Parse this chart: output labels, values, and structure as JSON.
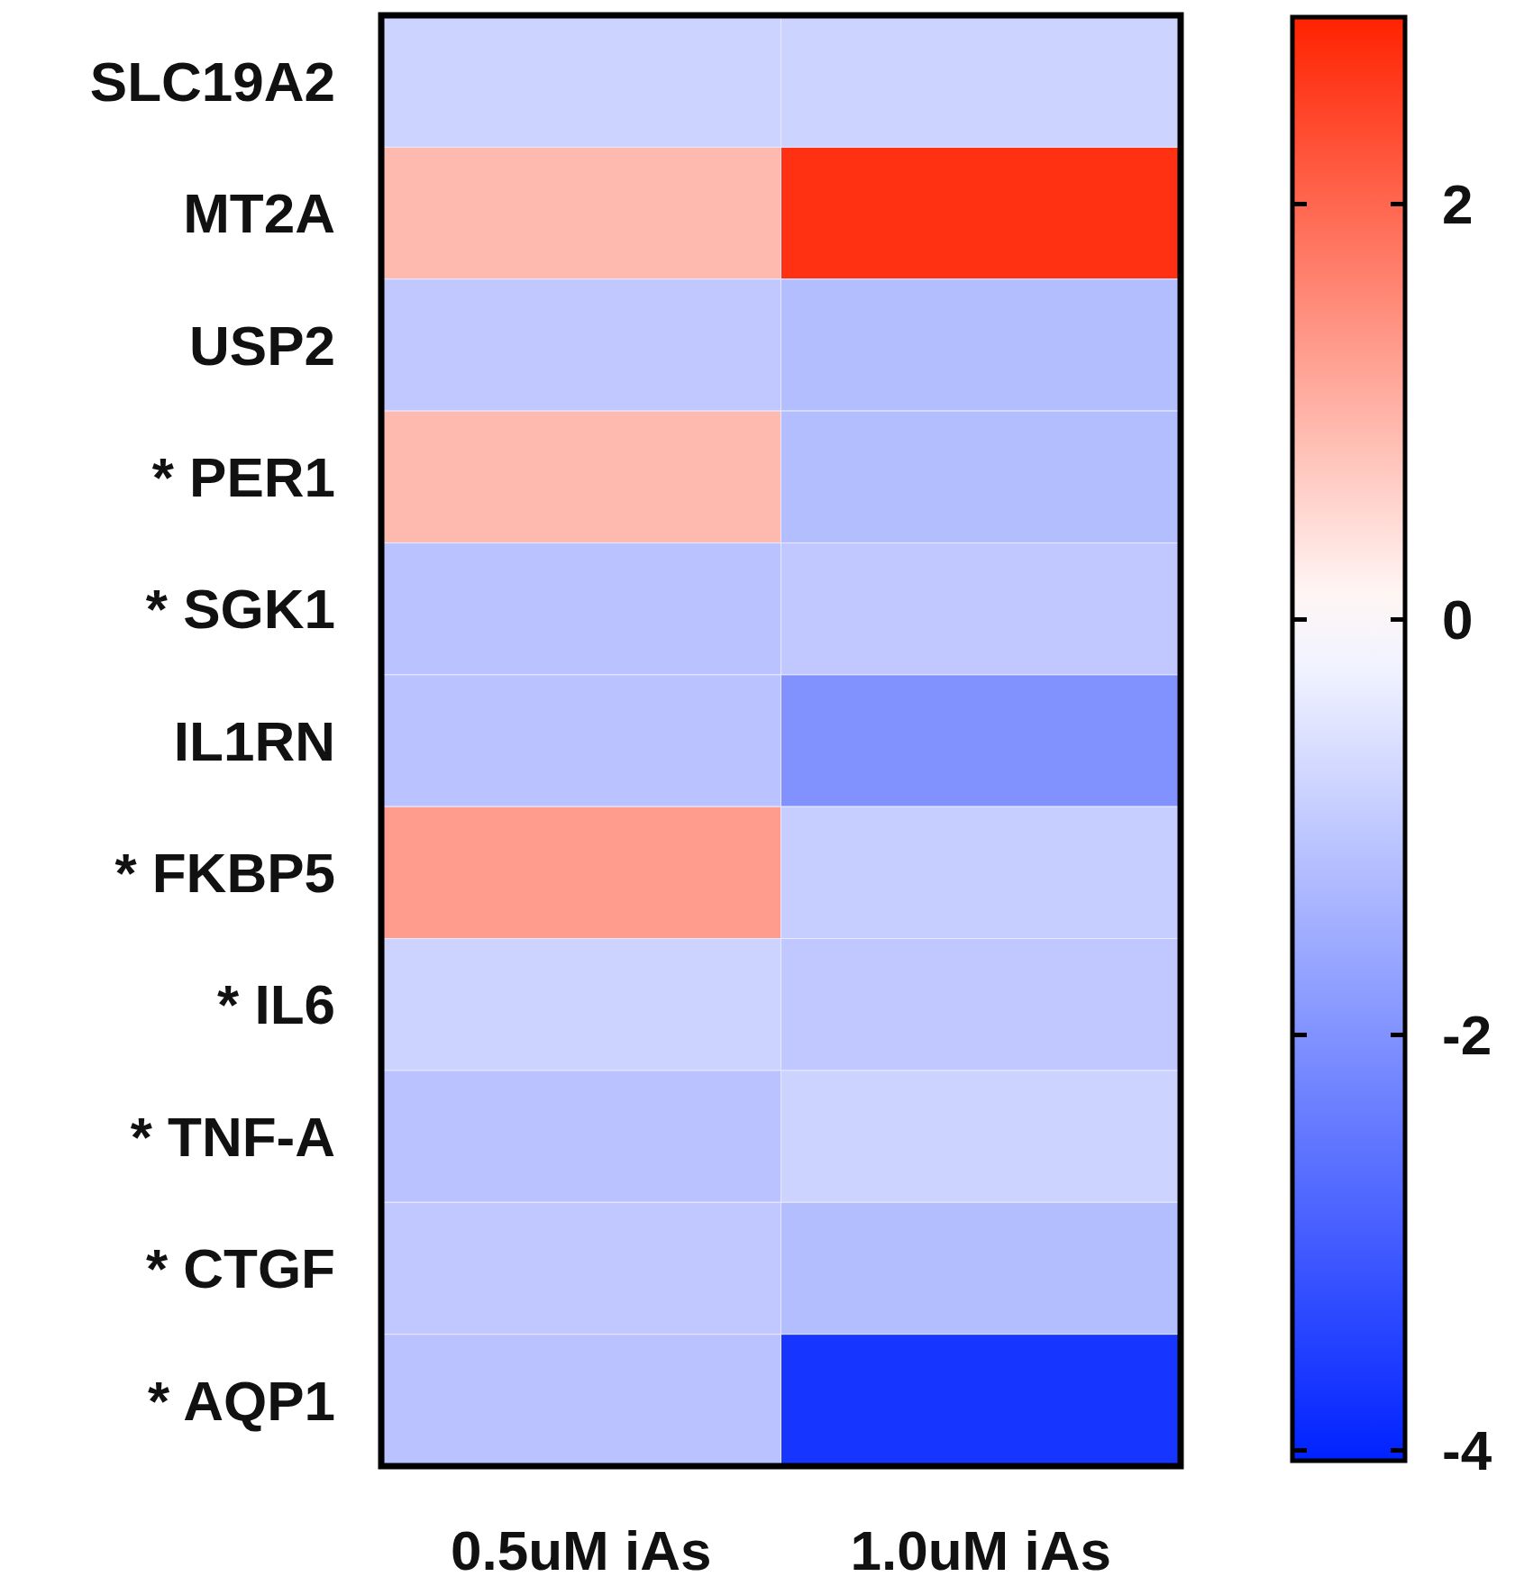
{
  "chart_data": {
    "type": "heatmap",
    "categories": [
      "0.5uM iAs",
      "1.0uM iAs"
    ],
    "y_categories": [
      "SLC19A2",
      "MT2A",
      "USP2",
      "* PER1",
      "* SGK1",
      "IL1RN",
      "* FKBP5",
      "* IL6",
      "* TNF-A",
      "* CTGF",
      "* AQP1"
    ],
    "cells": [
      [
        -0.8,
        -0.8
      ],
      [
        0.9,
        2.7
      ],
      [
        -1.0,
        -1.2
      ],
      [
        0.9,
        -1.2
      ],
      [
        -1.1,
        -1.0
      ],
      [
        -1.1,
        -2.0
      ],
      [
        1.3,
        -0.9
      ],
      [
        -0.8,
        -1.0
      ],
      [
        -1.1,
        -0.8
      ],
      [
        -1.0,
        -1.2
      ],
      [
        -1.1,
        -3.7
      ]
    ],
    "clim": [
      -4.05,
      2.9
    ],
    "cticks": [
      -4,
      -2,
      0,
      2
    ]
  }
}
